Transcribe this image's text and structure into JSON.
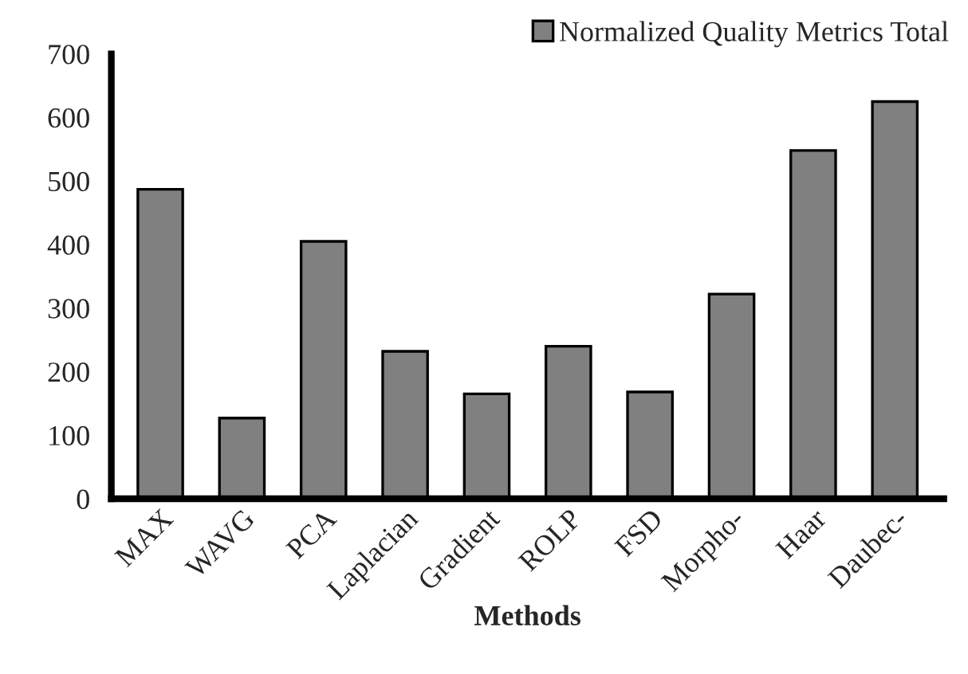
{
  "chart_data": {
    "type": "bar",
    "xlabel": "Methods",
    "categories": [
      "MAX",
      "WAVG",
      "PCA",
      "Laplacian",
      "Gradient",
      "ROLP",
      "FSD",
      "Morpho-",
      "Haar",
      "Daubec-"
    ],
    "series": [
      {
        "name": "Normalized Quality Metrics Total",
        "color": "#808080",
        "values": [
          487,
          127,
          405,
          232,
          165,
          240,
          168,
          322,
          548,
          625
        ]
      }
    ],
    "ylim": [
      0,
      700
    ],
    "yticks": [
      0,
      100,
      200,
      300,
      400,
      500,
      600,
      700
    ],
    "grid": false,
    "legend": "top right"
  }
}
